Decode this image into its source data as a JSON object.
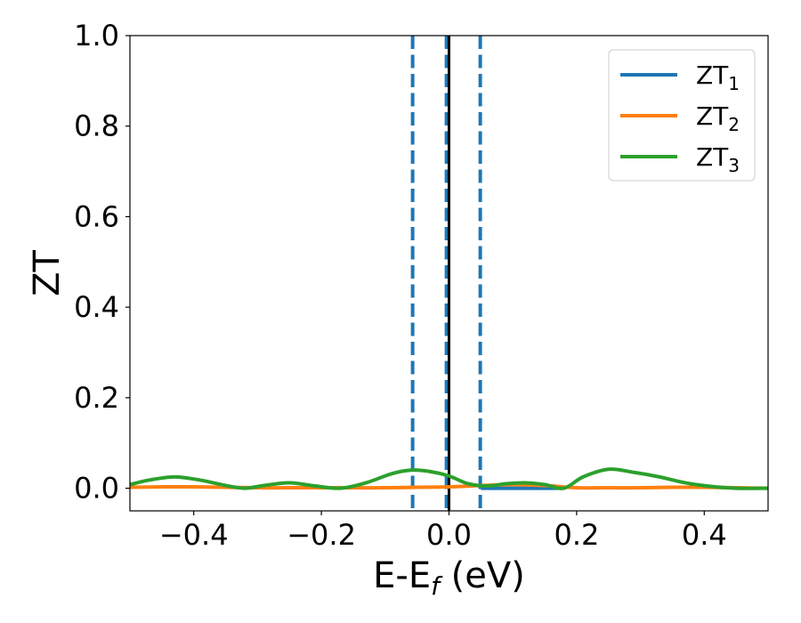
{
  "chart_data": {
    "type": "line",
    "xlabel": "E-E",
    "xlabel_sub": "f",
    "xlabel_unit": " (eV)",
    "ylabel": "ZT",
    "xlim": [
      -0.5,
      0.5
    ],
    "ylim": [
      -0.05,
      1.0
    ],
    "x_ticks": [
      -0.4,
      -0.2,
      0.0,
      0.2,
      0.4
    ],
    "x_tick_labels": [
      "−0.4",
      "−0.2",
      "0.0",
      "0.2",
      "0.4"
    ],
    "y_ticks": [
      0.0,
      0.2,
      0.4,
      0.6,
      0.8,
      1.0
    ],
    "y_tick_labels": [
      "0.0",
      "0.2",
      "0.4",
      "0.6",
      "0.8",
      "1.0"
    ],
    "grid": false,
    "legend_position": "top-right",
    "series": [
      {
        "name": "ZT",
        "name_sub": "1",
        "color": "#1f77b4",
        "x": [
          0.05,
          0.1,
          0.15,
          0.17
        ],
        "y": [
          0.0,
          0.0,
          0.0,
          0.0
        ]
      },
      {
        "name": "ZT",
        "name_sub": "2",
        "color": "#ff7f0e",
        "x": [
          -0.5,
          -0.45,
          -0.4,
          -0.35,
          -0.3,
          -0.25,
          -0.2,
          -0.15,
          -0.1,
          -0.05,
          0.0,
          0.05,
          0.1,
          0.15,
          0.2,
          0.25,
          0.3,
          0.35,
          0.4,
          0.45,
          0.5
        ],
        "y": [
          0.002,
          0.003,
          0.003,
          0.002,
          0.001,
          0.001,
          0.001,
          0.001,
          0.001,
          0.002,
          0.003,
          0.006,
          0.008,
          0.006,
          0.001,
          0.001,
          0.001,
          0.002,
          0.002,
          0.001,
          0.0
        ]
      },
      {
        "name": "ZT",
        "name_sub": "3",
        "color": "#2ca02c",
        "x": [
          -0.5,
          -0.47,
          -0.43,
          -0.39,
          -0.35,
          -0.32,
          -0.29,
          -0.25,
          -0.21,
          -0.17,
          -0.13,
          -0.09,
          -0.06,
          -0.03,
          0.0,
          0.03,
          0.06,
          0.09,
          0.12,
          0.15,
          0.18,
          0.21,
          0.25,
          0.29,
          0.33,
          0.37,
          0.41,
          0.45,
          0.5
        ],
        "y": [
          0.008,
          0.018,
          0.025,
          0.018,
          0.006,
          0.0,
          0.006,
          0.012,
          0.005,
          0.0,
          0.012,
          0.032,
          0.04,
          0.037,
          0.027,
          0.01,
          0.005,
          0.01,
          0.012,
          0.008,
          0.0,
          0.025,
          0.042,
          0.035,
          0.025,
          0.012,
          0.004,
          0.0,
          0.0
        ]
      }
    ],
    "vertical_lines": [
      {
        "x": -0.057,
        "style": "dashed",
        "color": "#1f77b4"
      },
      {
        "x": -0.004,
        "style": "dashed",
        "color": "#1f77b4"
      },
      {
        "x": 0.0,
        "style": "solid",
        "color": "#000000"
      },
      {
        "x": 0.049,
        "style": "dashed",
        "color": "#1f77b4"
      }
    ]
  }
}
